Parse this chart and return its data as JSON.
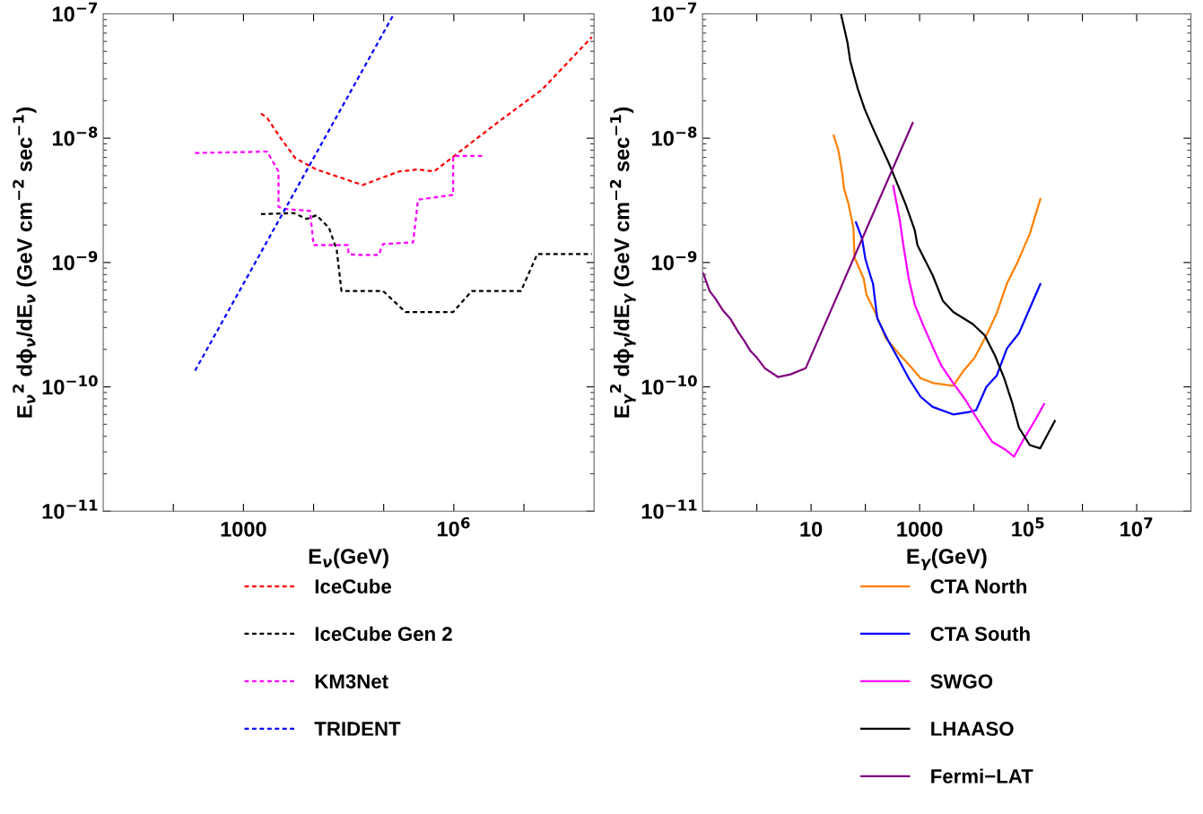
{
  "chart_data": [
    {
      "type": "line",
      "log": "xy",
      "line_style": "dashed",
      "legend": "bottom",
      "xlabel": "E$_{ν}$(GeV)",
      "ylabel": "E$_{ν}$$^{2}$ dϕ$_{ν}$/dE$_{ν}$ (GeV cm$^{−2}$ sec$^{−1}$)",
      "xlim": [
        10,
        100000000
      ],
      "ylim": [
        1e-11,
        1e-07
      ],
      "xticks": [
        {
          "value": 100,
          "label": null
        },
        1000,
        {
          "value": 10000,
          "label": null
        },
        {
          "value": 100000,
          "label": null
        },
        {
          "value": 1000000,
          "label": "10$^{6}$"
        },
        {
          "value": 10000000,
          "label": null
        }
      ],
      "yticks": [
        {
          "value": 1e-11,
          "label": "10$^{−11}$"
        },
        {
          "value": 1e-10,
          "label": "10$^{−10}$"
        },
        {
          "value": 1e-09,
          "label": "10$^{−9}$"
        },
        {
          "value": 1e-08,
          "label": "10$^{−8}$"
        },
        {
          "value": 1e-07,
          "label": "10$^{−7}$"
        }
      ],
      "series": [
        {
          "name": "IceCube",
          "color": "#ff0000",
          "x": [
            1778,
            2188,
            3311,
            5495,
            11000,
            50000,
            166000,
            310000,
            525000,
            980000,
            4300000,
            18000000,
            93000000
          ],
          "values": [
            1.58e-08,
            1.45e-08,
            1.02e-08,
            6.9e-09,
            5.6e-09,
            4.2e-09,
            5.4e-09,
            5.6e-09,
            5.4e-09,
            7.1e-09,
            1.35e-08,
            2.45e-08,
            6.5e-08
          ]
        },
        {
          "name": "IceCube Gen 2",
          "color": "#000000",
          "x": [
            1778,
            5248,
            7943,
            11000,
            16600,
            21400,
            25000,
            98000,
            204000,
            980000,
            1800000,
            9100000,
            15500000,
            93000000
          ],
          "values": [
            2.45e-09,
            2.5e-09,
            2.24e-09,
            2.4e-09,
            1.9e-09,
            1.26e-09,
            5.9e-10,
            5.9e-10,
            4e-10,
            4e-10,
            5.9e-10,
            5.9e-10,
            1.17e-09,
            1.17e-09
          ]
        },
        {
          "name": "KM3Net",
          "color": "#ff00ff",
          "x": [
            204,
            2188,
            2692,
            3162,
            3162,
            3802,
            8913,
            10000,
            30900,
            31600,
            42700,
            85000,
            98000,
            263000,
            309000,
            980000,
            980000,
            2750000
          ],
          "values": [
            7.6e-09,
            7.8e-09,
            6.3e-09,
            5.4e-09,
            2.8e-09,
            2.7e-09,
            2.6e-09,
            1.38e-09,
            1.38e-09,
            1.17e-09,
            1.15e-09,
            1.15e-09,
            1.41e-09,
            1.45e-09,
            3.2e-09,
            3.5e-09,
            7.2e-09,
            7.2e-09
          ]
        },
        {
          "name": "TRIDENT",
          "color": "#0000ff",
          "x": [
            204,
            140000
          ],
          "values": [
            1.35e-10,
            1e-07
          ]
        }
      ]
    },
    {
      "type": "line",
      "log": "xy",
      "line_style": "solid",
      "legend": "bottom",
      "xlabel": "E$_{γ}$(GeV)",
      "ylabel": "E$_{γ}$$^{2}$ dϕ$_{γ}$/dE$_{γ}$ (GeV cm$^{−2}$ sec$^{−1}$)",
      "xlim": [
        0.1,
        100000000
      ],
      "ylim": [
        1e-11,
        1e-07
      ],
      "xticks": [
        {
          "value": 1,
          "label": null
        },
        10,
        {
          "value": 100,
          "label": null
        },
        1000,
        {
          "value": 10000,
          "label": null
        },
        {
          "value": 100000,
          "label": "10$^{5}$"
        },
        {
          "value": 1000000,
          "label": null
        },
        {
          "value": 10000000,
          "label": "10$^{7}$"
        }
      ],
      "yticks": [
        {
          "value": 1e-11,
          "label": "10$^{−11}$"
        },
        {
          "value": 1e-10,
          "label": "10$^{−10}$"
        },
        {
          "value": 1e-09,
          "label": "10$^{−9}$"
        },
        {
          "value": 1e-08,
          "label": "10$^{−8}$"
        },
        {
          "value": 1e-07,
          "label": "10$^{−7}$"
        }
      ],
      "series": [
        {
          "name": "CTA North",
          "color": "#ff8000",
          "x": [
            25.7,
            31.6,
            36.3,
            40.7,
            49,
            60.3,
            63.1,
            93.3,
            105,
            155,
            240,
            427,
            661,
            1047,
            1820,
            4169,
            6457,
            10200,
            17000,
            26300,
            40700,
            64600,
            107000,
            170000
          ],
          "values": [
            1.07e-08,
            8.1e-09,
            5.75e-09,
            3.9e-09,
            2.95e-09,
            1.9e-09,
            1.1e-09,
            7.4e-10,
            5.5e-10,
            3.9e-10,
            2.45e-10,
            1.82e-10,
            1.48e-10,
            1.17e-10,
            1.07e-10,
            1.02e-10,
            1.35e-10,
            1.7e-10,
            2.6e-10,
            3.9e-10,
            6.8e-10,
            1.02e-09,
            1.7e-09,
            3.3e-09
          ]
        },
        {
          "name": "CTA South",
          "color": "#0000ff",
          "x": [
            66.1,
            87.1,
            100,
            129,
            138,
            166,
            257,
            398,
            631,
            1047,
            1738,
            4169,
            8511,
            11000,
            17000,
            26300,
            40700,
            67600,
            170000
          ],
          "values": [
            2.14e-09,
            1.55e-09,
            1.07e-09,
            7.4e-10,
            6.8e-10,
            3.55e-10,
            2.4e-10,
            1.7e-10,
            1.17e-10,
            8.3e-11,
            6.9e-11,
            6e-11,
            6.3e-11,
            6.5e-11,
            1e-10,
            1.23e-10,
            2.04e-10,
            2.7e-10,
            6.8e-10
          ]
        },
        {
          "name": "SWGO",
          "color": "#ff00ff",
          "x": [
            324,
            427,
            513,
            631,
            813,
            1175,
            1738,
            2512,
            4169,
            6918,
            14100,
            21900,
            38900,
            55000,
            83000,
            138000,
            200000
          ],
          "values": [
            4.2e-09,
            2.24e-09,
            1.29e-09,
            7.4e-10,
            4.6e-10,
            3.1e-10,
            2.1e-10,
            1.48e-10,
            1.07e-10,
            7.9e-11,
            4.8e-11,
            3.6e-11,
            3.1e-11,
            2.75e-11,
            3.8e-11,
            5.5e-11,
            7.4e-11
          ]
        },
        {
          "name": "LHAASO",
          "color": "#000000",
          "x": [
            35.5,
            46.8,
            52.5,
            72.4,
            97.7,
            138,
            275,
            550,
            813,
            912,
            1738,
            2692,
            4169,
            9550,
            15800,
            24500,
            36300,
            50000,
            67600,
            107000,
            166000,
            245000,
            316000
          ],
          "values": [
            1e-07,
            5.9e-08,
            4.2e-08,
            2.5e-08,
            1.7e-08,
            1.2e-08,
            6.2e-09,
            2.95e-09,
            1.82e-09,
            1.38e-09,
            7.9e-10,
            4.9e-10,
            4e-10,
            3.2e-10,
            2.6e-10,
            1.78e-10,
            1.17e-10,
            7.6e-11,
            4.7e-11,
            3.4e-11,
            3.2e-11,
            4.4e-11,
            5.4e-11
          ]
        },
        {
          "name": "Fermi−LAT",
          "color": "#800080",
          "x": [
            0.102,
            0.135,
            0.174,
            0.24,
            0.33,
            0.457,
            0.59,
            0.76,
            1.02,
            1.41,
            2.45,
            4.17,
            7.94,
            759
          ],
          "values": [
            8.3e-10,
            5.9e-10,
            5.1e-10,
            4.1e-10,
            3.5e-10,
            2.75e-10,
            2.34e-10,
            1.95e-10,
            1.7e-10,
            1.41e-10,
            1.2e-10,
            1.26e-10,
            1.41e-10,
            1.35e-08
          ]
        }
      ]
    }
  ]
}
